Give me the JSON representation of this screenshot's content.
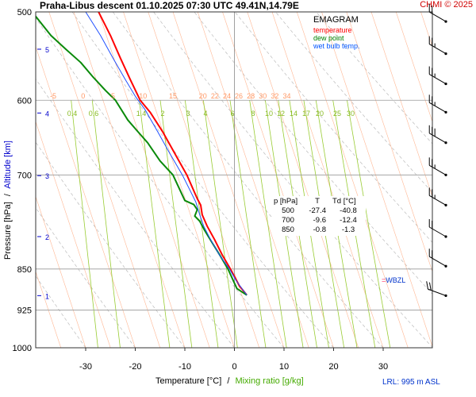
{
  "header": {
    "title": "Praha-Libus   descent   01.10.2025 07:30 UTC  49.41N,14.79E",
    "copyright": "CHMI © 2025"
  },
  "legend": {
    "title": "EMAGRAM",
    "items": [
      {
        "label": "temperature",
        "color": "#ff0000"
      },
      {
        "label": "dew point",
        "color": "#008000"
      },
      {
        "label": "wet bulb temp.",
        "color": "#0055ff"
      }
    ]
  },
  "footer": {
    "lrl": "LRL: 995 m ASL"
  },
  "station_marker": "WBZL",
  "colors": {
    "temperature": "#ff0000",
    "dew_point": "#0a8a0a",
    "wet_bulb": "#2050ff",
    "isotherm_ticks": "#ff9966",
    "mixing_ratio": "#99cc33",
    "altitude_label": "#0000cc",
    "grid": "#999999"
  },
  "chart_data": {
    "type": "line",
    "xlabel": "Temperature [°C]",
    "xlabel_sep": "/",
    "xlabel2": "Mixing ratio [g/kg]",
    "ylabel": "Pressure [hPa]",
    "ylabel_sep": "/",
    "ylabel2": "Altitude [km]",
    "ylog": true,
    "xlim": [
      -40,
      40
    ],
    "ylim": [
      1000,
      500
    ],
    "grid": true,
    "x_ticks": [
      -30,
      -20,
      -10,
      0,
      10,
      20,
      30
    ],
    "pressure_ticks": [
      500,
      600,
      700,
      850,
      925,
      1000
    ],
    "altitude_ticks": [
      {
        "label": "1",
        "p": 898
      },
      {
        "label": "2",
        "p": 795
      },
      {
        "label": "3",
        "p": 701
      },
      {
        "label": "4",
        "p": 616
      },
      {
        "label": "5",
        "p": 540
      }
    ],
    "isotherm_labels": [
      "-5",
      "0",
      "5",
      "10",
      "15",
      "20",
      "22",
      "24",
      "26",
      "28",
      "30",
      "32",
      "34"
    ],
    "isotherm_label_values": [
      -5,
      0,
      5,
      10,
      15,
      20,
      22,
      24,
      26,
      28,
      30,
      32,
      34
    ],
    "mixing_ratio_labels": [
      "0.4",
      "0.6",
      "1.4",
      "2",
      "3",
      "4",
      "6",
      "8",
      "10",
      "12",
      "14",
      "17",
      "20",
      "25",
      "30"
    ],
    "mixing_ratio_values": [
      0.4,
      0.6,
      1.4,
      2,
      3,
      4,
      6,
      8,
      10,
      12,
      14,
      17,
      20,
      25,
      30
    ],
    "series": [
      {
        "name": "temperature",
        "points": [
          [
            2.5,
            897
          ],
          [
            1,
            880
          ],
          [
            -0.8,
            850
          ],
          [
            -2.5,
            825
          ],
          [
            -4,
            800
          ],
          [
            -5.5,
            778
          ],
          [
            -6.5,
            760
          ],
          [
            -6.8,
            745
          ],
          [
            -7.5,
            735
          ],
          [
            -9.6,
            700
          ],
          [
            -12,
            670
          ],
          [
            -14.5,
            640
          ],
          [
            -17,
            615
          ],
          [
            -19,
            600
          ],
          [
            -21,
            575
          ],
          [
            -23,
            550
          ],
          [
            -25,
            525
          ],
          [
            -27.4,
            500
          ],
          [
            -28.5,
            495
          ]
        ]
      },
      {
        "name": "dew point",
        "points": [
          [
            2.5,
            897
          ],
          [
            0.5,
            885
          ],
          [
            -1.3,
            850
          ],
          [
            -2.8,
            828
          ],
          [
            -4.5,
            805
          ],
          [
            -6,
            785
          ],
          [
            -7,
            770
          ],
          [
            -8,
            762
          ],
          [
            -7.5,
            752
          ],
          [
            -8.2,
            744
          ],
          [
            -10,
            738
          ],
          [
            -12.4,
            700
          ],
          [
            -15,
            680
          ],
          [
            -17.5,
            655
          ],
          [
            -19.5,
            640
          ],
          [
            -21.5,
            625
          ],
          [
            -24,
            600
          ],
          [
            -26,
            588
          ],
          [
            -28.5,
            572
          ],
          [
            -31,
            555
          ],
          [
            -34,
            540
          ],
          [
            -37,
            525
          ],
          [
            -40.8,
            500
          ]
        ]
      },
      {
        "name": "wet bulb temp.",
        "points": [
          [
            2.5,
            897
          ],
          [
            0.3,
            870
          ],
          [
            -1,
            850
          ],
          [
            -3,
            826
          ],
          [
            -4.8,
            800
          ],
          [
            -6.2,
            778
          ],
          [
            -7,
            760
          ],
          [
            -7.8,
            740
          ],
          [
            -10.5,
            700
          ],
          [
            -13,
            670
          ],
          [
            -15.5,
            640
          ],
          [
            -18,
            612
          ],
          [
            -20,
            595
          ],
          [
            -22,
            575
          ],
          [
            -24.5,
            550
          ],
          [
            -27,
            525
          ],
          [
            -30,
            500
          ]
        ]
      }
    ],
    "table": {
      "headers": [
        "p [hPa]",
        "T",
        "Td [°C]"
      ],
      "rows": [
        [
          "500",
          "-27.4",
          "-40.8"
        ],
        [
          "700",
          "-9.6",
          "-12.4"
        ],
        [
          "850",
          "-0.8",
          "-1.3"
        ]
      ]
    },
    "wind_barbs": [
      {
        "p": 510,
        "dir": 300,
        "speed_kt": 20
      },
      {
        "p": 545,
        "dir": 300,
        "speed_kt": 25
      },
      {
        "p": 580,
        "dir": 300,
        "speed_kt": 25
      },
      {
        "p": 615,
        "dir": 300,
        "speed_kt": 25
      },
      {
        "p": 655,
        "dir": 300,
        "speed_kt": 30
      },
      {
        "p": 700,
        "dir": 300,
        "speed_kt": 25
      },
      {
        "p": 745,
        "dir": 300,
        "speed_kt": 25
      },
      {
        "p": 795,
        "dir": 300,
        "speed_kt": 20
      },
      {
        "p": 845,
        "dir": 300,
        "speed_kt": 20
      },
      {
        "p": 898,
        "dir": 290,
        "speed_kt": 20
      }
    ]
  }
}
